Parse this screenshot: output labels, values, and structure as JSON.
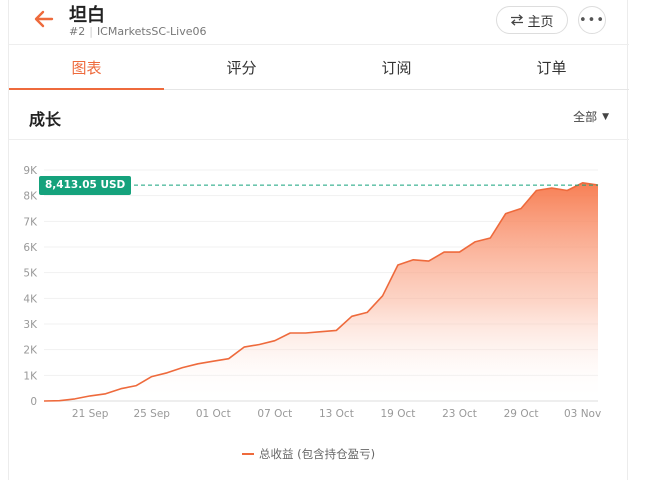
{
  "header": {
    "title": "坦白",
    "account_no": "#2",
    "server": "ICMarketsSC-Live06",
    "home_label": "主页",
    "more_label": "•••"
  },
  "tabs": [
    {
      "label": "图表",
      "active": true
    },
    {
      "label": "评分",
      "active": false
    },
    {
      "label": "订阅",
      "active": false
    },
    {
      "label": "订单",
      "active": false
    }
  ],
  "section": {
    "title": "成长",
    "range": "全部"
  },
  "current_value_label": "8,413.05 USD",
  "colors": {
    "accent": "#ee6a3c",
    "badge": "#15a27c"
  },
  "chart_data": {
    "type": "area",
    "y_ticks": [
      "0",
      "1K",
      "2K",
      "3K",
      "4K",
      "5K",
      "6K",
      "7K",
      "8K",
      "9K"
    ],
    "ylim": [
      0,
      9000
    ],
    "x_ticks": [
      "21 Sep",
      "25 Sep",
      "01 Oct",
      "07 Oct",
      "13 Oct",
      "19 Oct",
      "23 Oct",
      "29 Oct",
      "03 Nov"
    ],
    "grid": true,
    "legend_position": "bottom",
    "series": [
      {
        "name": "总收益 (包含持仓盈亏)",
        "x": [
          "",
          "",
          "",
          "21 Sep",
          "",
          "",
          "",
          "25 Sep",
          "",
          "",
          "",
          "01 Oct",
          "",
          "",
          "",
          "07 Oct",
          "",
          "",
          "",
          "13 Oct",
          "",
          "",
          "",
          "19 Oct",
          "",
          "",
          "",
          "23 Oct",
          "",
          "",
          "",
          "29 Oct",
          "",
          "",
          "",
          "03 Nov",
          ""
        ],
        "values": [
          0,
          10,
          80,
          200,
          280,
          480,
          600,
          950,
          1100,
          1300,
          1450,
          1550,
          1650,
          2100,
          2200,
          2350,
          2650,
          2650,
          2700,
          2750,
          3300,
          3450,
          4100,
          5300,
          5500,
          5450,
          5800,
          5800,
          6200,
          6350,
          7300,
          7500,
          8200,
          8300,
          8200,
          8500,
          8413
        ]
      }
    ],
    "reference_value": 8413.05
  }
}
